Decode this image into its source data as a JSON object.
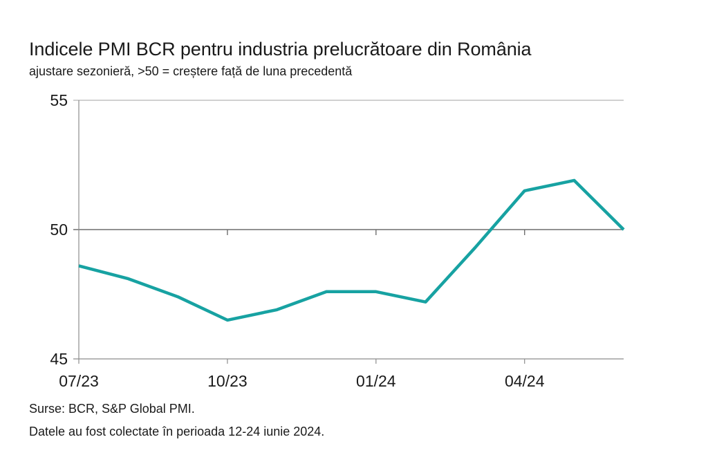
{
  "header": {
    "title": "Indicele PMI BCR pentru industria prelucrătoare din România",
    "subtitle": "ajustare sezonieră, >50 = creștere față de luna precedentă"
  },
  "footer": {
    "sources": "Surse: BCR, S&P Global PMI.",
    "note": "Datele au fost colectate în perioada 12-24 iunie 2024."
  },
  "chart_data": {
    "type": "line",
    "title": "Indicele PMI BCR pentru industria prelucrătoare din România",
    "subtitle": "ajustare sezonieră, >50 = creștere față de luna precedentă",
    "xlabel": "",
    "ylabel": "",
    "x": [
      "07/23",
      "08/23",
      "09/23",
      "10/23",
      "11/23",
      "12/23",
      "01/24",
      "02/24",
      "03/24",
      "04/24",
      "05/24",
      "06/24"
    ],
    "x_tick_labels": [
      "07/23",
      "10/23",
      "01/24",
      "04/24"
    ],
    "y_ticks": [
      45,
      50,
      55
    ],
    "ylim": [
      45,
      55
    ],
    "reference_line": 50,
    "grid": false,
    "legend": "none",
    "series": [
      {
        "values": [
          48.6,
          48.1,
          47.4,
          46.5,
          46.9,
          47.6,
          47.6,
          47.2,
          49.3,
          51.5,
          51.9,
          50.0
        ],
        "color": "#17a2a2"
      }
    ]
  }
}
